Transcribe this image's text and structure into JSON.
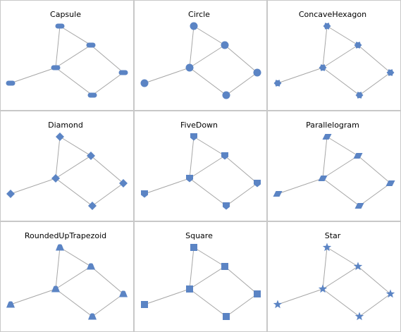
{
  "colors": {
    "node": "#5b84c4",
    "edge": "#a6a6a6",
    "border": "#c8c8c8"
  },
  "graph": {
    "nodes": [
      "top",
      "right",
      "center",
      "left",
      "far-right",
      "bottom"
    ],
    "edges": [
      [
        "top",
        "center"
      ],
      [
        "top",
        "right"
      ],
      [
        "right",
        "center"
      ],
      [
        "right",
        "far-right"
      ],
      [
        "center",
        "left"
      ],
      [
        "center",
        "bottom"
      ],
      [
        "far-right",
        "bottom"
      ]
    ]
  },
  "panels": [
    {
      "title": "Capsule",
      "shape": "capsule"
    },
    {
      "title": "Circle",
      "shape": "circle"
    },
    {
      "title": "ConcaveHexagon",
      "shape": "concave-hexagon"
    },
    {
      "title": "Diamond",
      "shape": "diamond"
    },
    {
      "title": "FiveDown",
      "shape": "five-down"
    },
    {
      "title": "Parallelogram",
      "shape": "parallelogram"
    },
    {
      "title": "RoundedUpTrapezoid",
      "shape": "rounded-up-trapezoid"
    },
    {
      "title": "Square",
      "shape": "square"
    },
    {
      "title": "Star",
      "shape": "star"
    }
  ]
}
